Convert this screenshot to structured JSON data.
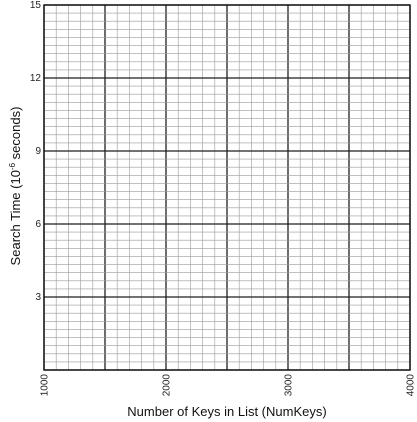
{
  "chart_data": {
    "type": "scatter",
    "title": "",
    "xlabel": "Number of Keys in List (NumKeys)",
    "ylabel": {
      "prefix": "Search Time (10",
      "exponent": "-6",
      "suffix": " seconds)"
    },
    "xlim": [
      1000,
      4000
    ],
    "ylim": [
      0,
      15
    ],
    "x_ticks": [
      "1000",
      "2000",
      "3000",
      "4000"
    ],
    "y_ticks": [
      "15",
      "12",
      "9",
      "6",
      "3"
    ],
    "grid": true,
    "series": []
  }
}
